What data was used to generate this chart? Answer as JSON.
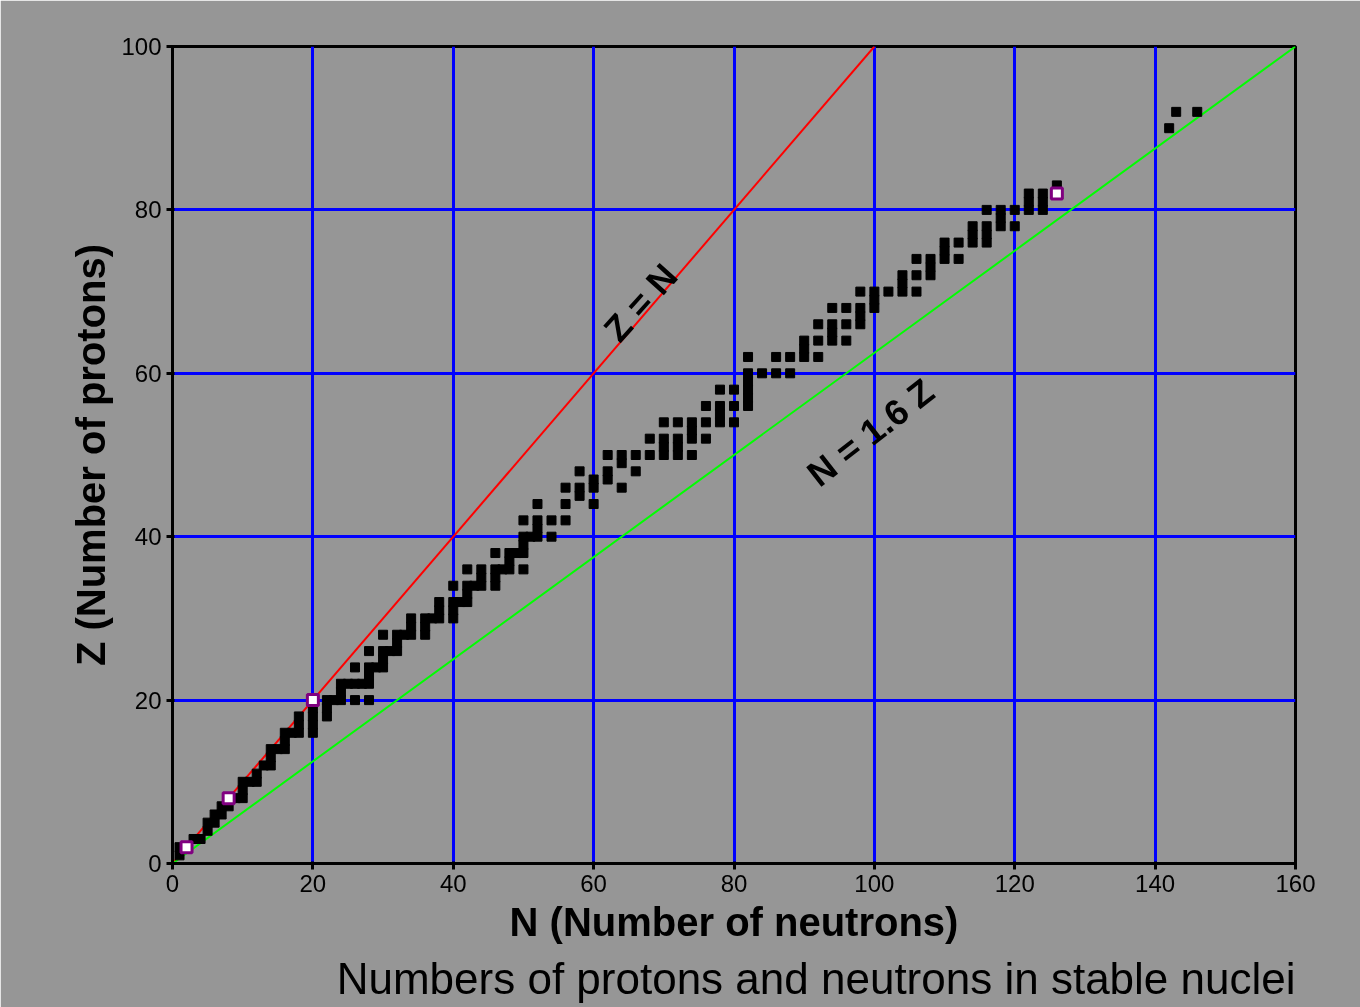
{
  "chart_data": {
    "type": "scatter",
    "title": "Numbers of protons and neutrons in stable nuclei",
    "xlabel": "N (Number of neutrons)",
    "ylabel": "Z (Number of protons)",
    "xlim": [
      0,
      160
    ],
    "ylim": [
      0,
      100
    ],
    "xticks": [
      0,
      20,
      40,
      60,
      80,
      100,
      120,
      140,
      160
    ],
    "yticks": [
      0,
      20,
      40,
      60,
      80,
      100
    ],
    "grid": true,
    "annotations": [
      "Z = N",
      "N = 1.6 Z"
    ],
    "series": [
      {
        "type": "line",
        "color": "#ff0000",
        "x": [
          0,
          100
        ],
        "values": [
          0,
          100
        ]
      },
      {
        "type": "line",
        "color": "#00ff00",
        "x": [
          0,
          160
        ],
        "values": [
          0,
          100
        ]
      },
      {
        "color": "#000000",
        "marker": "square",
        "x": [
          1,
          1,
          3,
          4,
          5,
          5,
          6,
          6,
          7,
          7,
          8,
          9,
          10,
          10,
          10,
          11,
          12,
          12,
          13,
          14,
          14,
          14,
          15,
          16,
          16,
          16,
          17,
          18,
          20,
          18,
          20,
          18,
          20,
          22,
          20,
          22,
          22,
          23,
          24,
          26,
          28,
          24,
          24,
          25,
          26,
          27,
          28,
          28,
          26,
          28,
          29,
          30,
          30,
          28,
          30,
          31,
          32,
          32,
          30,
          32,
          33,
          34,
          36,
          34,
          36,
          34,
          36,
          37,
          38,
          40,
          38,
          40,
          38,
          40,
          41,
          42,
          42,
          40,
          42,
          43,
          44,
          46,
          44,
          46,
          42,
          44,
          46,
          47,
          48,
          50,
          48,
          46,
          48,
          49,
          50,
          50,
          50,
          51,
          52,
          54,
          52,
          50,
          52,
          54,
          56,
          52,
          56,
          60,
          58,
          56,
          58,
          60,
          64,
          60,
          62,
          58,
          62,
          66,
          64,
          62,
          64,
          66,
          68,
          70,
          72,
          74,
          70,
          72,
          68,
          70,
          72,
          74,
          76,
          74,
          70,
          72,
          74,
          76,
          78,
          80,
          78,
          76,
          78,
          80,
          82,
          82,
          78,
          80,
          82,
          82,
          82,
          84,
          86,
          88,
          82,
          86,
          88,
          90,
          92,
          90,
          90,
          92,
          94,
          96,
          94,
          92,
          94,
          96,
          98,
          98,
          94,
          96,
          98,
          100,
          100,
          98,
          100,
          102,
          104,
          106,
          104,
          104,
          106,
          108,
          108,
          106,
          108,
          110,
          112,
          110,
          110,
          112,
          114,
          116,
          114,
          116,
          114,
          116,
          118,
          120,
          118,
          116,
          118,
          120,
          122,
          124,
          122,
          124,
          122,
          124,
          126,
          142,
          143,
          146
        ],
        "values": [
          1,
          2,
          3,
          3,
          4,
          5,
          5,
          6,
          6,
          7,
          7,
          8,
          8,
          9,
          10,
          10,
          10,
          11,
          12,
          12,
          13,
          14,
          14,
          14,
          15,
          16,
          16,
          16,
          16,
          17,
          17,
          18,
          18,
          18,
          19,
          19,
          20,
          20,
          20,
          20,
          20,
          21,
          22,
          22,
          22,
          22,
          22,
          23,
          24,
          24,
          24,
          24,
          25,
          26,
          26,
          26,
          26,
          27,
          28,
          28,
          28,
          28,
          28,
          29,
          29,
          30,
          30,
          30,
          30,
          30,
          31,
          31,
          32,
          32,
          32,
          32,
          33,
          34,
          34,
          34,
          34,
          34,
          35,
          35,
          36,
          36,
          36,
          36,
          36,
          36,
          37,
          38,
          38,
          38,
          38,
          39,
          40,
          40,
          40,
          40,
          41,
          42,
          42,
          42,
          42,
          44,
          44,
          44,
          45,
          46,
          46,
          46,
          46,
          47,
          47,
          48,
          48,
          48,
          49,
          50,
          50,
          50,
          50,
          50,
          50,
          50,
          51,
          51,
          52,
          52,
          52,
          52,
          52,
          53,
          54,
          54,
          54,
          54,
          54,
          54,
          55,
          56,
          56,
          56,
          56,
          57,
          58,
          58,
          58,
          59,
          60,
          60,
          60,
          60,
          62,
          62,
          62,
          62,
          62,
          63,
          64,
          64,
          64,
          64,
          65,
          66,
          66,
          66,
          66,
          67,
          68,
          68,
          68,
          68,
          69,
          70,
          70,
          70,
          70,
          70,
          71,
          72,
          72,
          72,
          73,
          74,
          74,
          74,
          74,
          75,
          76,
          76,
          76,
          76,
          77,
          77,
          78,
          78,
          78,
          78,
          79,
          80,
          80,
          80,
          80,
          80,
          81,
          81,
          82,
          82,
          83,
          90,
          92,
          92
        ]
      },
      {
        "color": "#800080",
        "marker": "square",
        "x": [
          2,
          8,
          20,
          126
        ],
        "values": [
          2,
          8,
          20,
          82
        ]
      }
    ]
  }
}
